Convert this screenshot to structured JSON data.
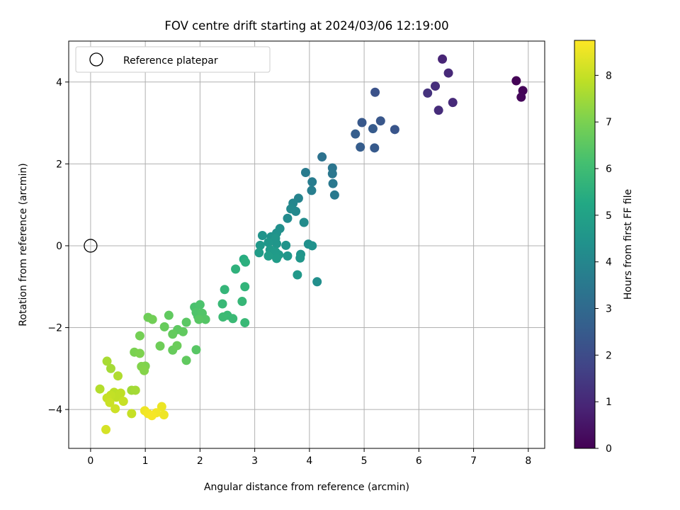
{
  "chart_data": {
    "type": "scatter",
    "title": "FOV centre drift starting at 2024/03/06 12:19:00",
    "xlabel": "Angular distance from reference (arcmin)",
    "ylabel": "Rotation from reference (arcmin)",
    "xlim": [
      -0.4,
      8.3
    ],
    "ylim": [
      -4.95,
      5.0
    ],
    "xticks": [
      0,
      1,
      2,
      3,
      4,
      5,
      6,
      7,
      8
    ],
    "yticks": [
      -4,
      -2,
      0,
      2,
      4
    ],
    "xtick_labels": [
      "0",
      "1",
      "2",
      "3",
      "4",
      "5",
      "6",
      "7",
      "8"
    ],
    "ytick_labels": [
      "−4",
      "−2",
      "0",
      "2",
      "4"
    ],
    "grid": true,
    "legend": {
      "placement": "top-left",
      "entries": [
        "Reference platepar"
      ]
    },
    "colorbar": {
      "label": "Hours from first FF file",
      "colormap": "viridis",
      "range": [
        0,
        8.75
      ],
      "ticks": [
        0,
        1,
        2,
        3,
        4,
        5,
        6,
        7,
        8
      ],
      "tick_labels": [
        "0",
        "1",
        "2",
        "3",
        "4",
        "5",
        "6",
        "7",
        "8"
      ]
    },
    "reference_point": {
      "x": 0,
      "y": 0,
      "name": "Reference platepar"
    },
    "points": [
      {
        "x": 7.78,
        "y": 4.03,
        "h": 0.05
      },
      {
        "x": 7.9,
        "y": 3.79,
        "h": 0.1
      },
      {
        "x": 7.87,
        "y": 3.63,
        "h": 0.15
      },
      {
        "x": 6.43,
        "y": 4.56,
        "h": 0.9
      },
      {
        "x": 6.54,
        "y": 4.22,
        "h": 1.0
      },
      {
        "x": 6.3,
        "y": 3.9,
        "h": 1.15
      },
      {
        "x": 6.16,
        "y": 3.73,
        "h": 1.25
      },
      {
        "x": 6.62,
        "y": 3.5,
        "h": 1.05
      },
      {
        "x": 6.36,
        "y": 3.31,
        "h": 1.1
      },
      {
        "x": 5.2,
        "y": 3.75,
        "h": 2.2
      },
      {
        "x": 4.96,
        "y": 3.01,
        "h": 2.4
      },
      {
        "x": 5.3,
        "y": 3.05,
        "h": 2.35
      },
      {
        "x": 5.16,
        "y": 2.86,
        "h": 2.5
      },
      {
        "x": 5.56,
        "y": 2.84,
        "h": 2.3
      },
      {
        "x": 4.84,
        "y": 2.73,
        "h": 2.6
      },
      {
        "x": 4.93,
        "y": 2.41,
        "h": 2.55
      },
      {
        "x": 5.19,
        "y": 2.39,
        "h": 2.45
      },
      {
        "x": 4.23,
        "y": 2.17,
        "h": 3.3
      },
      {
        "x": 4.42,
        "y": 1.9,
        "h": 3.4
      },
      {
        "x": 4.42,
        "y": 1.76,
        "h": 3.45
      },
      {
        "x": 3.93,
        "y": 1.79,
        "h": 3.6
      },
      {
        "x": 4.05,
        "y": 1.56,
        "h": 3.65
      },
      {
        "x": 4.43,
        "y": 1.52,
        "h": 3.5
      },
      {
        "x": 4.04,
        "y": 1.35,
        "h": 3.7
      },
      {
        "x": 4.46,
        "y": 1.24,
        "h": 3.55
      },
      {
        "x": 3.8,
        "y": 1.16,
        "h": 3.9
      },
      {
        "x": 3.7,
        "y": 1.04,
        "h": 4.0
      },
      {
        "x": 3.66,
        "y": 0.9,
        "h": 4.1
      },
      {
        "x": 3.75,
        "y": 0.84,
        "h": 4.05
      },
      {
        "x": 3.6,
        "y": 0.67,
        "h": 4.15
      },
      {
        "x": 3.9,
        "y": 0.57,
        "h": 4.2
      },
      {
        "x": 3.46,
        "y": 0.42,
        "h": 4.3
      },
      {
        "x": 3.4,
        "y": 0.31,
        "h": 4.4
      },
      {
        "x": 3.14,
        "y": 0.25,
        "h": 4.5
      },
      {
        "x": 3.3,
        "y": 0.22,
        "h": 4.45
      },
      {
        "x": 3.38,
        "y": 0.18,
        "h": 4.55
      },
      {
        "x": 3.25,
        "y": 0.08,
        "h": 4.6
      },
      {
        "x": 3.1,
        "y": 0.01,
        "h": 4.65
      },
      {
        "x": 3.4,
        "y": 0.05,
        "h": 4.55
      },
      {
        "x": 3.57,
        "y": 0.01,
        "h": 4.5
      },
      {
        "x": 3.98,
        "y": 0.04,
        "h": 4.35
      },
      {
        "x": 4.05,
        "y": 0.0,
        "h": 4.4
      },
      {
        "x": 3.28,
        "y": -0.1,
        "h": 4.7
      },
      {
        "x": 3.38,
        "y": -0.15,
        "h": 4.75
      },
      {
        "x": 3.08,
        "y": -0.17,
        "h": 4.8
      },
      {
        "x": 3.25,
        "y": -0.25,
        "h": 4.85
      },
      {
        "x": 3.44,
        "y": -0.22,
        "h": 4.7
      },
      {
        "x": 3.4,
        "y": -0.31,
        "h": 4.8
      },
      {
        "x": 3.6,
        "y": -0.25,
        "h": 4.6
      },
      {
        "x": 3.84,
        "y": -0.21,
        "h": 4.5
      },
      {
        "x": 3.83,
        "y": -0.3,
        "h": 4.55
      },
      {
        "x": 3.78,
        "y": -0.71,
        "h": 4.65
      },
      {
        "x": 4.14,
        "y": -0.88,
        "h": 4.3
      },
      {
        "x": 2.8,
        "y": -0.33,
        "h": 5.4
      },
      {
        "x": 2.83,
        "y": -0.4,
        "h": 5.5
      },
      {
        "x": 2.65,
        "y": -0.57,
        "h": 5.6
      },
      {
        "x": 2.45,
        "y": -1.07,
        "h": 5.75
      },
      {
        "x": 2.82,
        "y": -1.0,
        "h": 5.7
      },
      {
        "x": 2.77,
        "y": -1.36,
        "h": 5.8
      },
      {
        "x": 2.41,
        "y": -1.42,
        "h": 5.85
      },
      {
        "x": 2.5,
        "y": -1.7,
        "h": 5.9
      },
      {
        "x": 2.42,
        "y": -1.74,
        "h": 5.95
      },
      {
        "x": 2.6,
        "y": -1.78,
        "h": 5.9
      },
      {
        "x": 2.82,
        "y": -1.88,
        "h": 5.85
      },
      {
        "x": 1.9,
        "y": -1.5,
        "h": 6.2
      },
      {
        "x": 2.0,
        "y": -1.44,
        "h": 6.25
      },
      {
        "x": 1.93,
        "y": -1.63,
        "h": 6.3
      },
      {
        "x": 2.04,
        "y": -1.65,
        "h": 6.35
      },
      {
        "x": 1.96,
        "y": -1.72,
        "h": 6.3
      },
      {
        "x": 2.1,
        "y": -1.8,
        "h": 6.4
      },
      {
        "x": 1.98,
        "y": -1.8,
        "h": 6.45
      },
      {
        "x": 1.75,
        "y": -1.87,
        "h": 6.5
      },
      {
        "x": 1.43,
        "y": -1.7,
        "h": 6.6
      },
      {
        "x": 1.05,
        "y": -1.75,
        "h": 6.8
      },
      {
        "x": 1.13,
        "y": -1.8,
        "h": 6.85
      },
      {
        "x": 1.35,
        "y": -1.98,
        "h": 6.7
      },
      {
        "x": 1.59,
        "y": -2.05,
        "h": 6.55
      },
      {
        "x": 1.69,
        "y": -2.1,
        "h": 6.6
      },
      {
        "x": 1.5,
        "y": -2.16,
        "h": 6.65
      },
      {
        "x": 0.9,
        "y": -2.2,
        "h": 6.9
      },
      {
        "x": 1.58,
        "y": -2.44,
        "h": 6.75
      },
      {
        "x": 1.27,
        "y": -2.45,
        "h": 6.8
      },
      {
        "x": 1.5,
        "y": -2.55,
        "h": 6.7
      },
      {
        "x": 1.93,
        "y": -2.54,
        "h": 6.45
      },
      {
        "x": 0.8,
        "y": -2.6,
        "h": 7.0
      },
      {
        "x": 0.9,
        "y": -2.63,
        "h": 7.05
      },
      {
        "x": 1.75,
        "y": -2.8,
        "h": 6.6
      },
      {
        "x": 0.93,
        "y": -2.95,
        "h": 7.1
      },
      {
        "x": 1.0,
        "y": -2.94,
        "h": 7.05
      },
      {
        "x": 0.98,
        "y": -3.05,
        "h": 7.15
      },
      {
        "x": 0.3,
        "y": -2.82,
        "h": 7.6
      },
      {
        "x": 0.37,
        "y": -3.0,
        "h": 7.55
      },
      {
        "x": 0.5,
        "y": -3.18,
        "h": 7.7
      },
      {
        "x": 0.17,
        "y": -3.5,
        "h": 7.75
      },
      {
        "x": 0.75,
        "y": -3.53,
        "h": 7.5
      },
      {
        "x": 0.82,
        "y": -3.53,
        "h": 7.55
      },
      {
        "x": 0.43,
        "y": -3.58,
        "h": 7.85
      },
      {
        "x": 0.55,
        "y": -3.6,
        "h": 7.9
      },
      {
        "x": 0.37,
        "y": -3.65,
        "h": 7.95
      },
      {
        "x": 0.3,
        "y": -3.72,
        "h": 8.0
      },
      {
        "x": 0.47,
        "y": -3.7,
        "h": 7.9
      },
      {
        "x": 0.6,
        "y": -3.8,
        "h": 8.0
      },
      {
        "x": 0.35,
        "y": -3.83,
        "h": 8.05
      },
      {
        "x": 0.45,
        "y": -3.98,
        "h": 8.1
      },
      {
        "x": 0.75,
        "y": -4.1,
        "h": 8.0
      },
      {
        "x": 1.3,
        "y": -3.93,
        "h": 8.5
      },
      {
        "x": 0.99,
        "y": -4.03,
        "h": 8.55
      },
      {
        "x": 1.05,
        "y": -4.1,
        "h": 8.6
      },
      {
        "x": 1.2,
        "y": -4.08,
        "h": 8.6
      },
      {
        "x": 1.34,
        "y": -4.13,
        "h": 8.55
      },
      {
        "x": 1.12,
        "y": -4.15,
        "h": 8.65
      },
      {
        "x": 0.28,
        "y": -4.49,
        "h": 8.2
      }
    ]
  }
}
